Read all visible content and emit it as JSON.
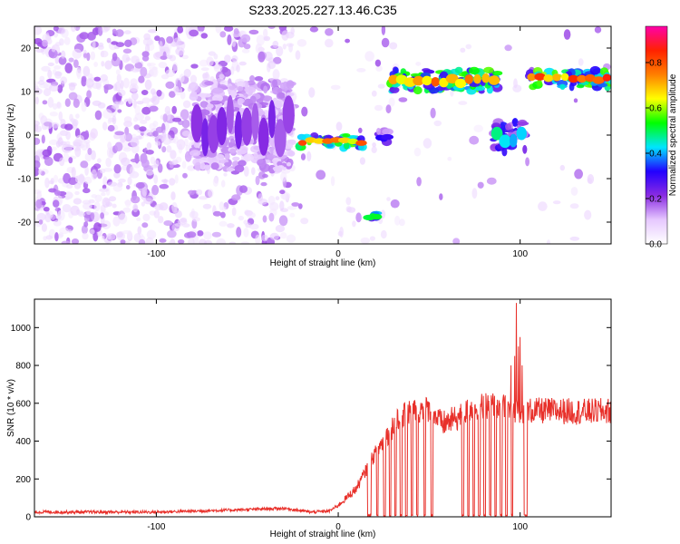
{
  "title": "S233.2025.227.13.46.C35",
  "chart_data": [
    {
      "type": "heatmap",
      "xlabel": "Height of straight line (km)",
      "ylabel": "Frequency (Hz)",
      "xlim": [
        -167,
        150
      ],
      "ylim": [
        -25,
        25
      ],
      "xticks": [
        -100,
        0,
        100
      ],
      "yticks": [
        -20,
        -10,
        0,
        10,
        20
      ],
      "colorbar": {
        "label": "Normalized spectral amplitude",
        "ticks": [
          0.0,
          0.2,
          0.4,
          0.6,
          0.8
        ],
        "range": [
          0,
          0.96
        ],
        "colors": [
          "#ffffff",
          "#e6c8ff",
          "#8a2be2",
          "#2200ff",
          "#00e5ff",
          "#00ff00",
          "#ffff00",
          "#ff7f00",
          "#ff2200",
          "#ff00aa"
        ]
      },
      "features": [
        {
          "x": [
            -80,
            -25
          ],
          "y": [
            -8,
            12
          ],
          "level": 0.25
        },
        {
          "x": [
            -22,
            15
          ],
          "y": [
            -3,
            0
          ],
          "level": 0.85
        },
        {
          "x": [
            16,
            22
          ],
          "y": [
            -20,
            -17
          ],
          "level": 0.7
        },
        {
          "x": [
            22,
            28
          ],
          "y": [
            -2,
            1
          ],
          "level": 0.4
        },
        {
          "x": [
            28,
            88
          ],
          "y": [
            10,
            15
          ],
          "level": 0.85
        },
        {
          "x": [
            85,
            103
          ],
          "y": [
            -4,
            3
          ],
          "level": 0.5
        },
        {
          "x": [
            104,
            150
          ],
          "y": [
            11,
            15
          ],
          "level": 0.9
        }
      ]
    },
    {
      "type": "line",
      "xlabel": "Height of straight line (km)",
      "ylabel": "SNR (10 * v/v)",
      "xlim": [
        -167,
        150
      ],
      "ylim": [
        0,
        1150
      ],
      "xticks": [
        -100,
        0,
        100
      ],
      "yticks": [
        0,
        200,
        400,
        600,
        800,
        1000
      ],
      "color": "#e8302a",
      "series": [
        {
          "profile": [
            [
              -167,
              25
            ],
            [
              -100,
              25
            ],
            [
              -60,
              35
            ],
            [
              -30,
              45
            ],
            [
              -15,
              25
            ],
            [
              -5,
              30
            ],
            [
              0,
              60
            ],
            [
              10,
              150
            ],
            [
              20,
              330
            ],
            [
              30,
              480
            ],
            [
              40,
              560
            ],
            [
              50,
              570
            ],
            [
              57,
              490
            ],
            [
              65,
              520
            ],
            [
              75,
              580
            ],
            [
              85,
              590
            ],
            [
              95,
              570
            ],
            [
              105,
              560
            ],
            [
              120,
              560
            ],
            [
              135,
              555
            ],
            [
              150,
              560
            ]
          ],
          "noise": [
            [
              -167,
              8
            ],
            [
              -1,
              8
            ],
            [
              0,
              12
            ],
            [
              20,
              40
            ],
            [
              30,
              70
            ],
            [
              150,
              70
            ]
          ],
          "dropouts": [
            [
              16,
              18
            ],
            [
              21,
              22
            ],
            [
              25,
              26
            ],
            [
              28,
              29
            ],
            [
              31,
              32
            ],
            [
              34,
              35
            ],
            [
              37,
              38
            ],
            [
              40,
              41
            ],
            [
              43,
              44
            ],
            [
              47,
              48
            ],
            [
              51,
              52
            ],
            [
              68,
              69
            ],
            [
              71,
              72
            ],
            [
              74,
              75
            ],
            [
              77,
              78
            ],
            [
              80,
              81
            ],
            [
              83,
              84
            ],
            [
              86,
              87
            ],
            [
              89,
              90
            ],
            [
              92,
              93
            ],
            [
              95,
              96
            ],
            [
              102,
              104
            ]
          ],
          "spikes": [
            [
              95,
              800
            ],
            [
              97,
              850
            ],
            [
              98,
              1130
            ],
            [
              99,
              900
            ],
            [
              100,
              950
            ],
            [
              101,
              800
            ]
          ]
        }
      ]
    }
  ]
}
